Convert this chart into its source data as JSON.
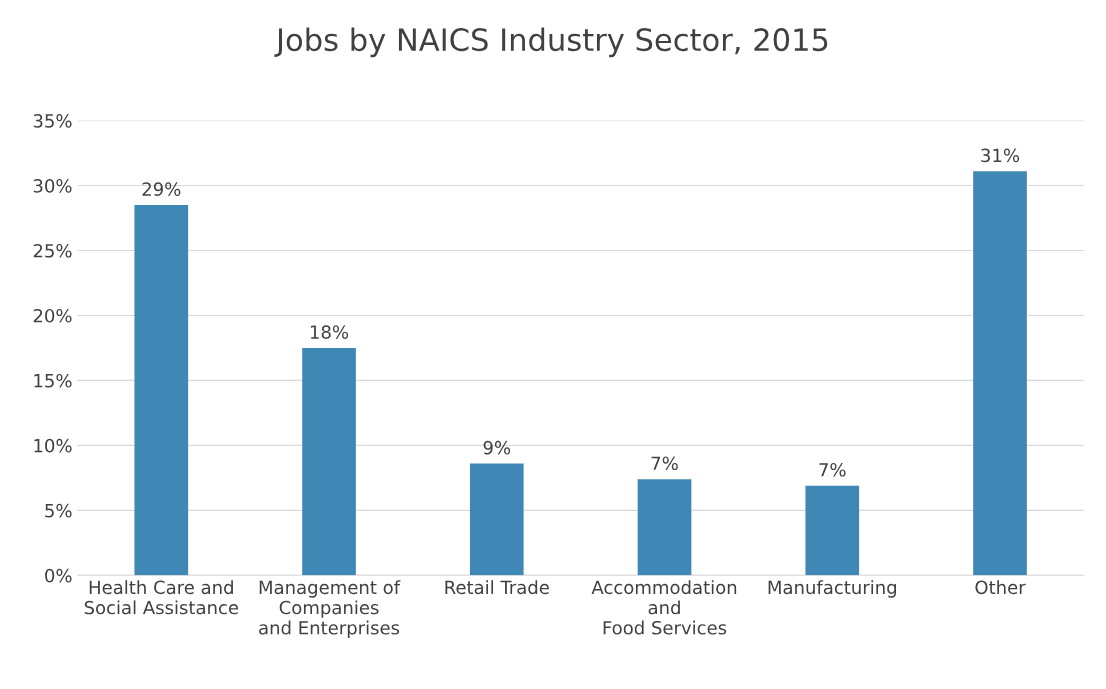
{
  "chart_data": {
    "type": "bar",
    "title": "Jobs by NAICS Industry Sector, 2015",
    "categories": [
      "Health Care and\nSocial Assistance",
      "Management of\nCompanies\nand Enterprises",
      "Retail Trade",
      "Accommodation\nand\nFood Services",
      "Manufacturing",
      "Other"
    ],
    "values": [
      28.5,
      17.5,
      8.6,
      7.4,
      6.9,
      31.1
    ],
    "value_labels": [
      "29%",
      "18%",
      "9%",
      "7%",
      "7%",
      "31%"
    ],
    "color": "#3f87b5",
    "ylim": [
      0,
      35
    ],
    "yticks": [
      {
        "value": 0,
        "label": "0%"
      },
      {
        "value": 5,
        "label": "5%"
      },
      {
        "value": 10,
        "label": "10%"
      },
      {
        "value": 15,
        "label": "15%"
      },
      {
        "value": 20,
        "label": "20%"
      },
      {
        "value": 25,
        "label": "25%"
      },
      {
        "value": 30,
        "label": "30%"
      },
      {
        "value": 35,
        "label": "35%"
      }
    ],
    "grid": "y",
    "legend": false
  }
}
